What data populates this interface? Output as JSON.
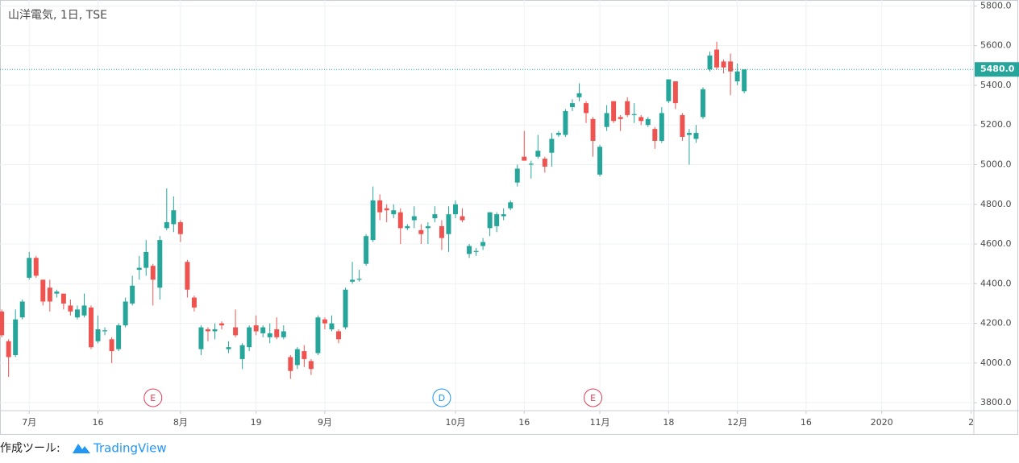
{
  "chart_data": {
    "type": "candlestick",
    "title": "山洋電気, 1日, TSE",
    "up_color": "#26a69a",
    "down_color": "#ef5350",
    "open": [
      4260,
      4110,
      4040,
      4230,
      4430,
      4530,
      4420,
      4380,
      4350,
      4350,
      4290,
      4230,
      4240,
      4280,
      4110,
      4160,
      4120,
      4070,
      4190,
      4300,
      4470,
      4480,
      4490,
      4380,
      4680,
      4700,
      4710,
      4510,
      4330,
      4070,
      4170,
      4160,
      4200,
      4070,
      4180,
      4020,
      4080,
      4190,
      4150,
      4130,
      4170,
      4130,
      4030,
      3990,
      4060,
      4010,
      4050,
      4220,
      4170,
      4160,
      4180,
      4410,
      4420,
      4500,
      4620,
      4820,
      4780,
      4750,
      4760,
      4680,
      4720,
      4670,
      4680,
      4730,
      4690,
      4650,
      4750,
      4740,
      4550,
      4560,
      4590,
      4680,
      4690,
      4740,
      4780,
      4910,
      5040,
      5000,
      5040,
      5030,
      5060,
      5150,
      5150,
      5290,
      5340,
      5310,
      5230,
      4950,
      5190,
      5320,
      5240,
      5320,
      5250,
      5240,
      5200,
      5180,
      5120,
      5320,
      5420,
      5250,
      5150,
      5130,
      5240,
      5480,
      5580,
      5520,
      5520,
      5420,
      5370
    ],
    "high": [
      4270,
      4120,
      4270,
      4320,
      4560,
      4540,
      4420,
      4420,
      4370,
      4350,
      4320,
      4290,
      4350,
      4290,
      4240,
      4180,
      4130,
      4200,
      4330,
      4440,
      4540,
      4620,
      4500,
      4640,
      4880,
      4840,
      4720,
      4520,
      4340,
      4190,
      4180,
      4200,
      4210,
      4110,
      4270,
      4100,
      4190,
      4240,
      4190,
      4200,
      4230,
      4190,
      4040,
      4080,
      4090,
      4020,
      4240,
      4230,
      4240,
      4170,
      4380,
      4510,
      4470,
      4650,
      4890,
      4850,
      4800,
      4800,
      4780,
      4700,
      4790,
      4700,
      4710,
      4790,
      4720,
      4790,
      4820,
      4780,
      4600,
      4580,
      4630,
      4760,
      4760,
      4780,
      4820,
      5000,
      5170,
      5020,
      5150,
      5040,
      5160,
      5170,
      5280,
      5330,
      5410,
      5320,
      5240,
      5100,
      5300,
      5320,
      5250,
      5340,
      5310,
      5250,
      5240,
      5190,
      5290,
      5430,
      5420,
      5260,
      5180,
      5200,
      5390,
      5570,
      5620,
      5530,
      5560,
      5510,
      5480
    ],
    "low": [
      4130,
      3930,
      4030,
      4220,
      4420,
      4430,
      4290,
      4260,
      4330,
      4270,
      4240,
      4220,
      4230,
      4070,
      4100,
      4140,
      4000,
      4060,
      4180,
      4290,
      4420,
      4440,
      4290,
      4320,
      4670,
      4660,
      4610,
      4330,
      4260,
      4040,
      4110,
      4120,
      4170,
      4050,
      4130,
      3970,
      4060,
      4140,
      4130,
      4100,
      4120,
      4120,
      3920,
      3970,
      3980,
      3940,
      4040,
      4170,
      4160,
      4100,
      4170,
      4400,
      4410,
      4490,
      4610,
      4720,
      4710,
      4730,
      4600,
      4670,
      4680,
      4600,
      4600,
      4710,
      4570,
      4560,
      4730,
      4710,
      4530,
      4540,
      4570,
      4640,
      4660,
      4720,
      4770,
      4890,
      5020,
      4930,
      5030,
      4960,
      4990,
      5140,
      5140,
      5270,
      5320,
      5210,
      5040,
      4940,
      5170,
      5210,
      5170,
      5240,
      5210,
      5200,
      5190,
      5080,
      5110,
      5310,
      5280,
      5120,
      5000,
      5110,
      5230,
      5470,
      5480,
      5460,
      5350,
      5400,
      5360
    ],
    "close": [
      4140,
      4030,
      4220,
      4310,
      4530,
      4440,
      4310,
      4310,
      4360,
      4300,
      4260,
      4270,
      4290,
      4080,
      4170,
      4165,
      4060,
      4190,
      4310,
      4390,
      4480,
      4560,
      4420,
      4620,
      4710,
      4770,
      4650,
      4370,
      4280,
      4180,
      4160,
      4170,
      4190,
      4080,
      4140,
      4090,
      4180,
      4160,
      4180,
      4150,
      4130,
      4160,
      3960,
      4070,
      4020,
      3970,
      4230,
      4200,
      4200,
      4120,
      4370,
      4420,
      4425,
      4640,
      4820,
      4760,
      4770,
      4770,
      4680,
      4690,
      4740,
      4650,
      4690,
      4750,
      4630,
      4750,
      4800,
      4720,
      4590,
      4565,
      4610,
      4760,
      4750,
      4750,
      4810,
      4980,
      5020,
      5005,
      5070,
      4990,
      5130,
      5160,
      5270,
      5310,
      5360,
      5260,
      5120,
      5090,
      5260,
      5220,
      5230,
      5250,
      5255,
      5220,
      5230,
      5120,
      5260,
      5430,
      5310,
      5140,
      5160,
      5160,
      5380,
      5550,
      5490,
      5490,
      5470,
      5470,
      5480
    ],
    "xlim": [
      -0.25,
      141.4
    ],
    "xticks": [
      {
        "value": 4,
        "label": "7月"
      },
      {
        "value": 14,
        "label": "16"
      },
      {
        "value": 26,
        "label": "8月"
      },
      {
        "value": 37,
        "label": "19"
      },
      {
        "value": 47,
        "label": "9月"
      },
      {
        "value": 66,
        "label": "10月"
      },
      {
        "value": 76,
        "label": "16"
      },
      {
        "value": 87,
        "label": "11月"
      },
      {
        "value": 97,
        "label": "18"
      },
      {
        "value": 107,
        "label": "12月"
      },
      {
        "value": 117,
        "label": "16"
      },
      {
        "value": 128,
        "label": "2020"
      },
      {
        "value": 141,
        "label": "2"
      }
    ],
    "ylim": [
      3760,
      5830
    ],
    "yticks": [
      {
        "value": 3800,
        "label": "3800.0"
      },
      {
        "value": 4000,
        "label": "4000.0"
      },
      {
        "value": 4200,
        "label": "4200.0"
      },
      {
        "value": 4400,
        "label": "4400.0"
      },
      {
        "value": 4600,
        "label": "4600.0"
      },
      {
        "value": 4800,
        "label": "4800.0"
      },
      {
        "value": 5000,
        "label": "5000.0"
      },
      {
        "value": 5200,
        "label": "5200.0"
      },
      {
        "value": 5400,
        "label": "5400.0"
      },
      {
        "value": 5600,
        "label": "5600.0"
      },
      {
        "value": 5800,
        "label": "5800.0"
      }
    ],
    "grid": true,
    "last_price": {
      "value": 5480,
      "label": "5480.0",
      "color": "#26a69a"
    },
    "events": [
      {
        "label": "E",
        "x": 22,
        "color": "#e0405a"
      },
      {
        "label": "D",
        "x": 64,
        "color": "#2196f3"
      },
      {
        "label": "E",
        "x": 86,
        "color": "#e0405a"
      }
    ]
  },
  "footer": {
    "prefix": "作成ツール:",
    "brand": "TradingView"
  }
}
